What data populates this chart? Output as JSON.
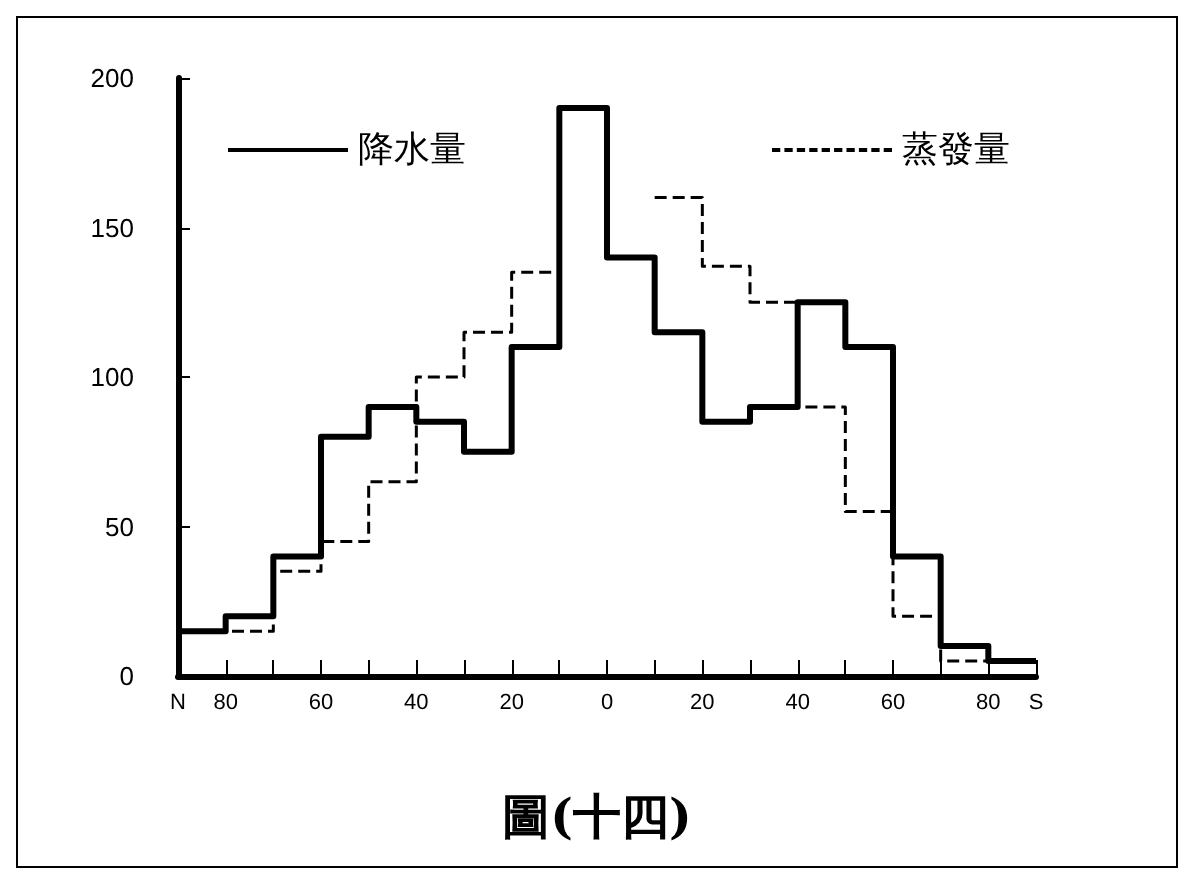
{
  "chart_data": {
    "type": "step",
    "title": "圖(十四)",
    "x": [
      -90,
      -80,
      -70,
      -60,
      -50,
      -40,
      -30,
      -20,
      -10,
      0,
      10,
      20,
      30,
      40,
      50,
      60,
      70,
      80,
      90
    ],
    "series": [
      {
        "name": "降水量",
        "color": "#000000",
        "line_style": "solid",
        "values": [
          15,
          20,
          40,
          80,
          90,
          85,
          75,
          110,
          190,
          140,
          115,
          85,
          90,
          125,
          110,
          40,
          10,
          5,
          5
        ]
      },
      {
        "name": "蒸發量",
        "color": "#000000",
        "line_style": "dashed",
        "values": [
          15,
          15,
          35,
          45,
          65,
          100,
          115,
          135,
          null,
          null,
          160,
          137,
          125,
          90,
          55,
          20,
          5,
          5,
          5
        ]
      }
    ],
    "xlim": [
      -90,
      90
    ],
    "xticks": [
      {
        "value": -90,
        "label": "N"
      },
      {
        "value": -80,
        "label": "80"
      },
      {
        "value": -70,
        "label": null
      },
      {
        "value": -60,
        "label": "60"
      },
      {
        "value": -50,
        "label": null
      },
      {
        "value": -40,
        "label": "40"
      },
      {
        "value": -30,
        "label": null
      },
      {
        "value": -20,
        "label": "20"
      },
      {
        "value": -10,
        "label": null
      },
      {
        "value": 0,
        "label": "0"
      },
      {
        "value": 10,
        "label": null
      },
      {
        "value": 20,
        "label": "20"
      },
      {
        "value": 30,
        "label": null
      },
      {
        "value": 40,
        "label": "40"
      },
      {
        "value": 50,
        "label": null
      },
      {
        "value": 60,
        "label": "60"
      },
      {
        "value": 70,
        "label": null
      },
      {
        "value": 80,
        "label": "80"
      },
      {
        "value": 90,
        "label": "S"
      }
    ],
    "ylim": [
      0,
      200
    ],
    "yticks": [
      0,
      50,
      100,
      150,
      200
    ],
    "grid": false,
    "legend": "top"
  }
}
